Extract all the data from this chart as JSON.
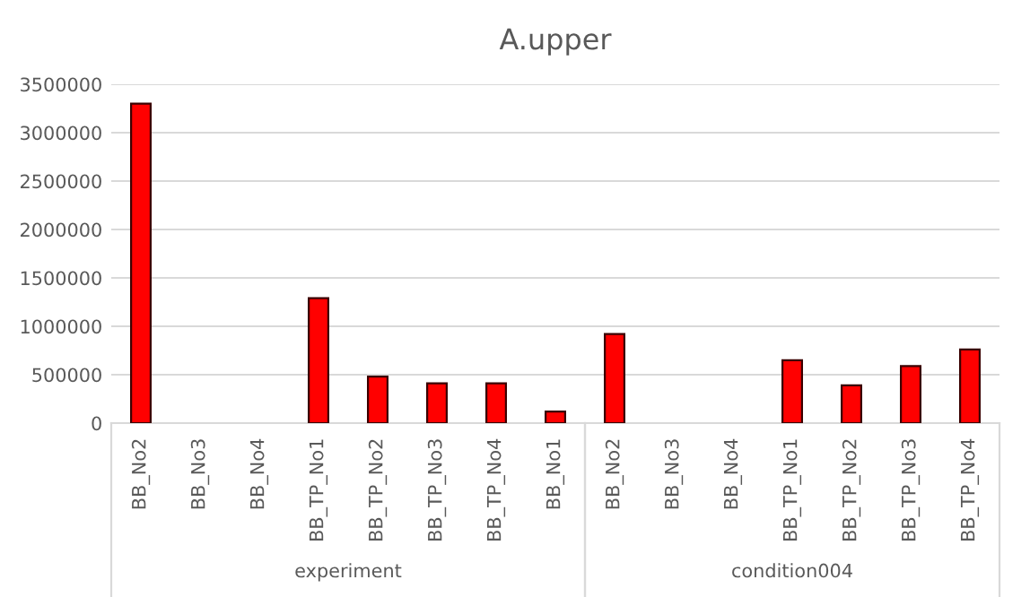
{
  "chart_data": {
    "type": "bar",
    "title": "A.upper",
    "categories": [
      "BB_No2",
      "BB_No3",
      "BB_No4",
      "BB_TP_No1",
      "BB_TP_No2",
      "BB_TP_No3",
      "BB_TP_No4",
      "BB_No1",
      "BB_No2",
      "BB_No3",
      "BB_No4",
      "BB_TP_No1",
      "BB_TP_No2",
      "BB_TP_No3",
      "BB_TP_No4"
    ],
    "values": [
      3300000,
      0,
      0,
      1290000,
      480000,
      410000,
      410000,
      120000,
      920000,
      0,
      0,
      650000,
      390000,
      590000,
      760000
    ],
    "color": "#ff0000",
    "ylim": [
      0,
      3500000
    ],
    "yticks": [
      0,
      500000,
      1000000,
      1500000,
      2000000,
      2500000,
      3000000,
      3500000
    ],
    "grid": "y",
    "legend": false,
    "annotations": [
      "experiment",
      "condition004"
    ]
  }
}
